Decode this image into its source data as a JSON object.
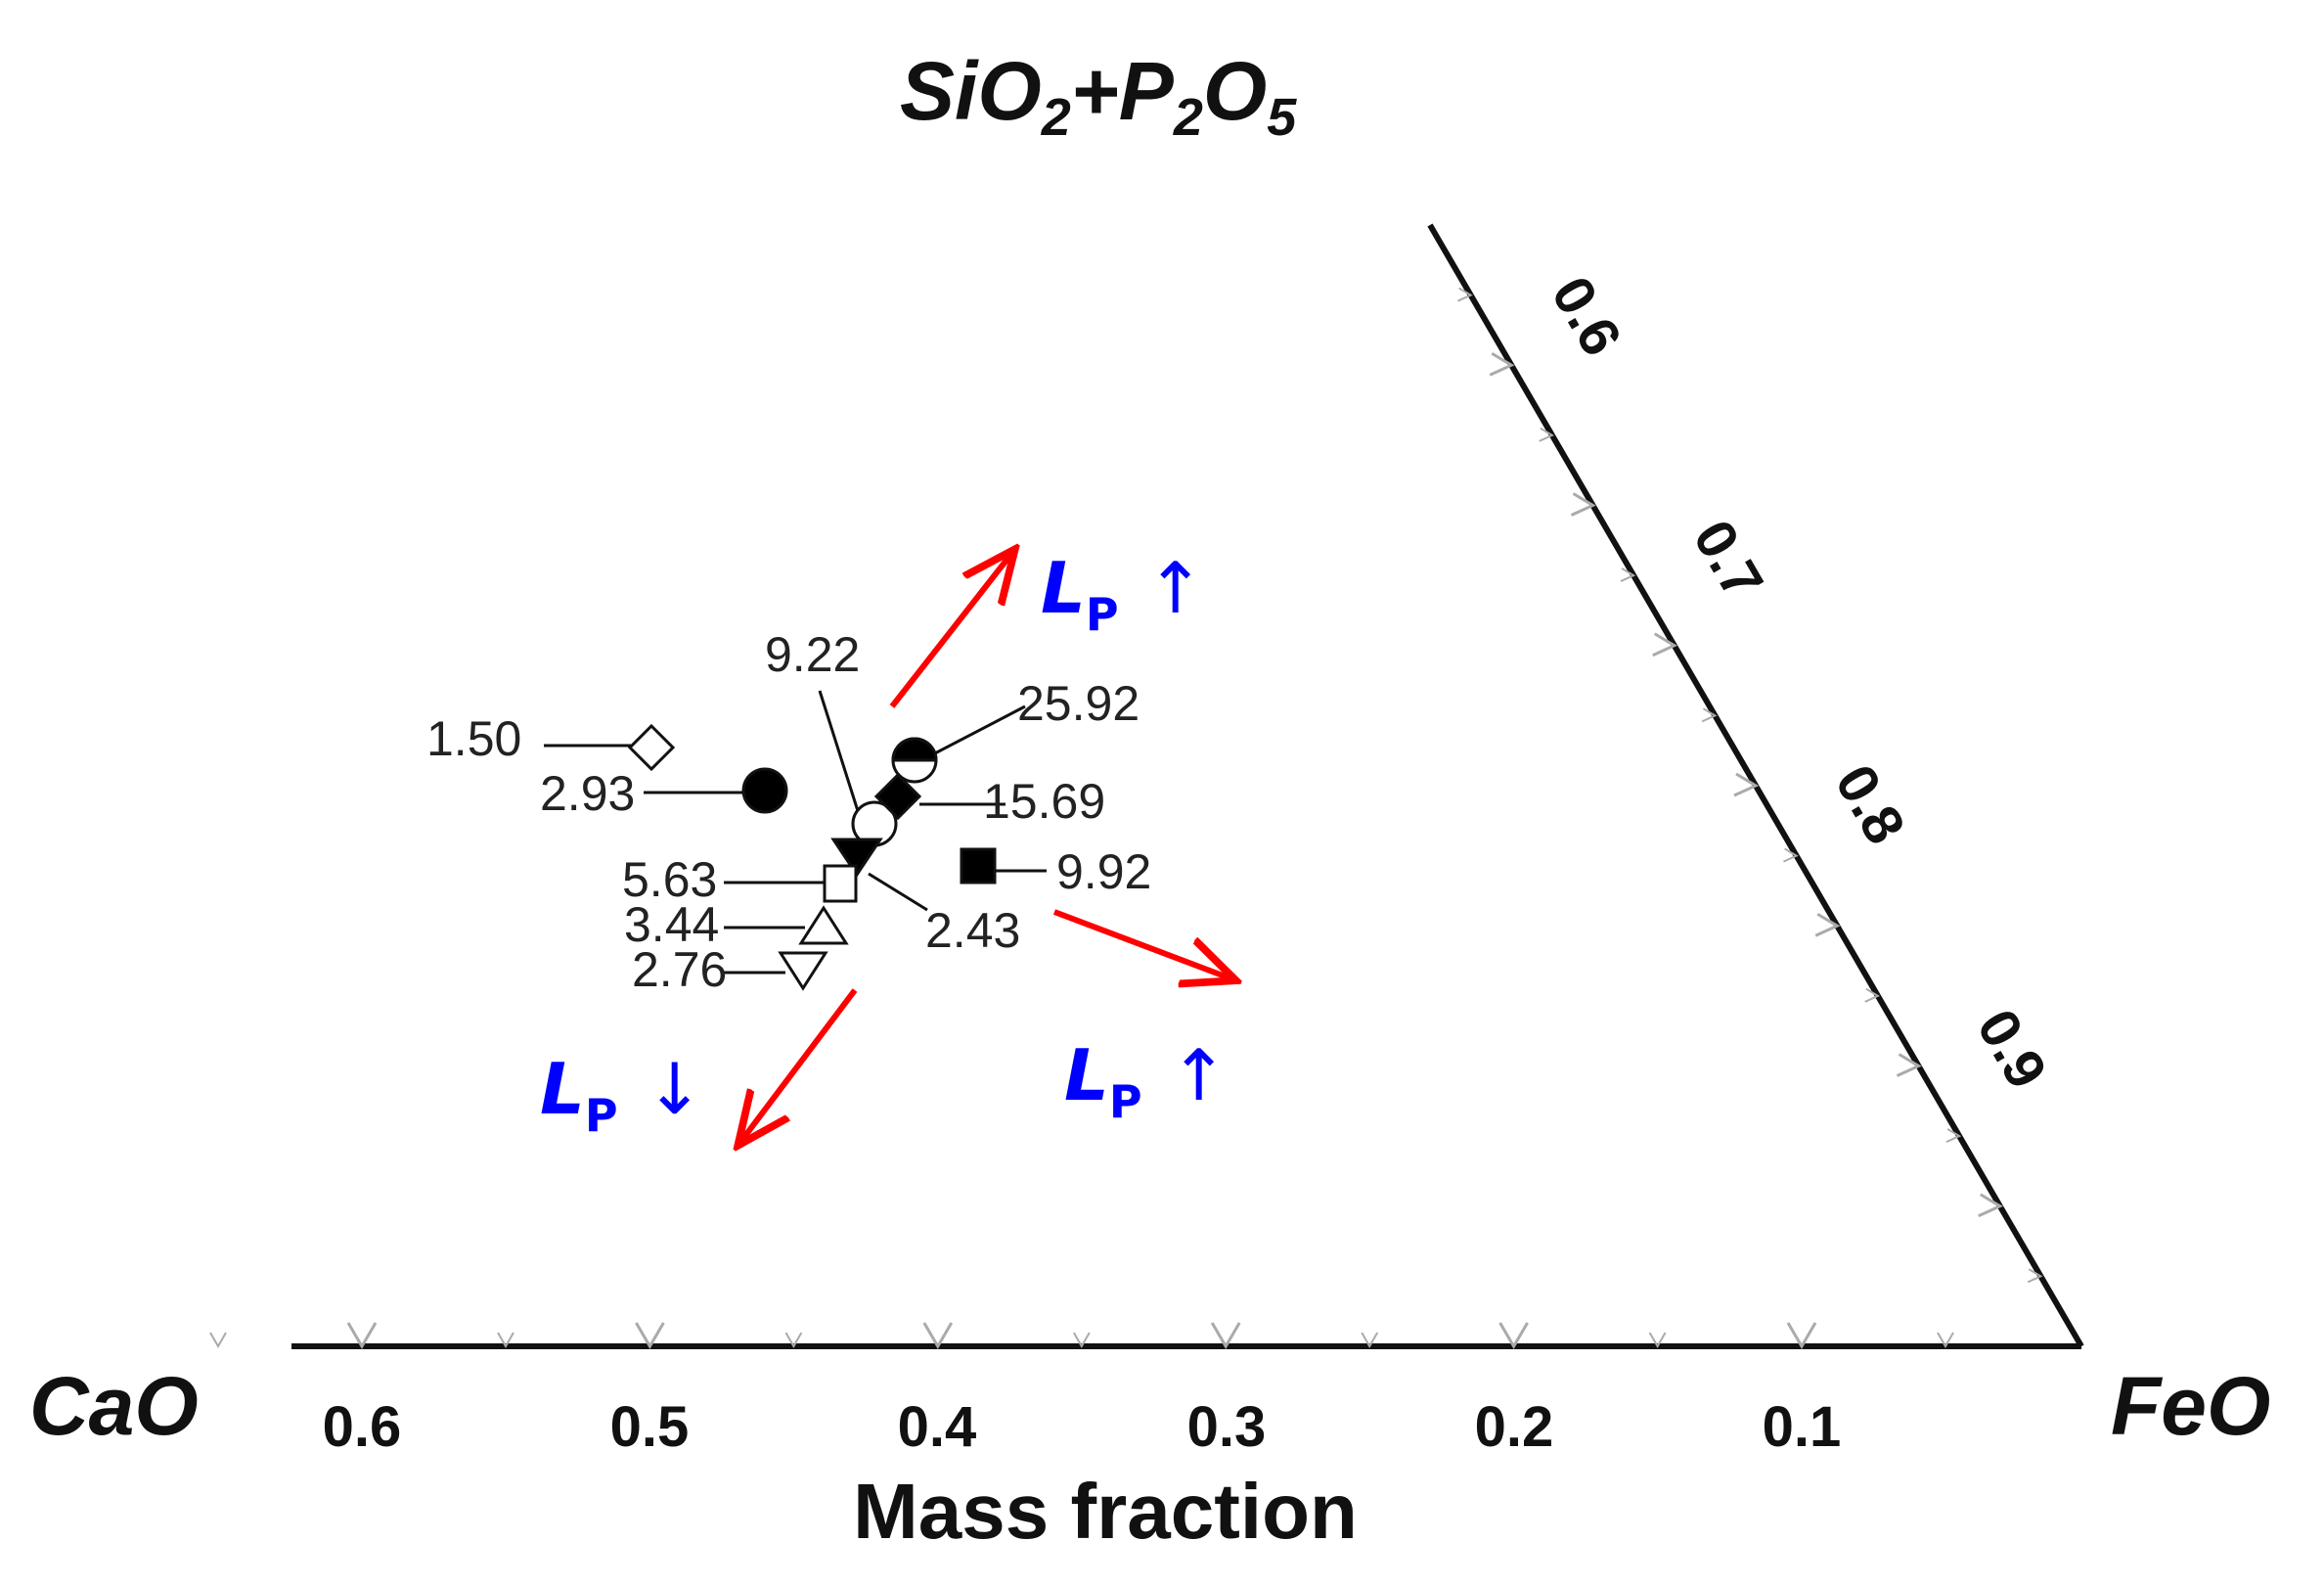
{
  "chart_data": {
    "type": "ternary-scatter",
    "corners": {
      "top": {
        "base": "SiO",
        "sub1": "2",
        "plus": "+P",
        "sub2": "2",
        "o": "O",
        "sub3": "5"
      },
      "left": "CaO",
      "right": "FeO"
    },
    "xlabel": "Mass fraction",
    "bottom_ticks": [
      "0.6",
      "0.5",
      "0.4",
      "0.3",
      "0.2",
      "0.1"
    ],
    "right_ticks": [
      "0.6",
      "0.7",
      "0.8",
      "0.9"
    ],
    "points": [
      {
        "label": "1.50",
        "marker": "diamond-open"
      },
      {
        "label": "2.93",
        "marker": "circle-filled"
      },
      {
        "label": "9.22",
        "marker": "circle-open"
      },
      {
        "label": "25.92",
        "marker": "circle-half"
      },
      {
        "label": "15.69",
        "marker": "diamond-filled"
      },
      {
        "label": "9.92",
        "marker": "square-filled"
      },
      {
        "label": "2.43",
        "marker": "triangle-down-filled"
      },
      {
        "label": "5.63",
        "marker": "square-open"
      },
      {
        "label": "3.44",
        "marker": "triangle-up-open"
      },
      {
        "label": "2.76",
        "marker": "triangle-down-open"
      }
    ],
    "annotations": [
      {
        "text": "L",
        "sub": "P",
        "arrow": "↑",
        "direction": "up-right"
      },
      {
        "text": "L",
        "sub": "P",
        "arrow": "↑",
        "direction": "right"
      },
      {
        "text": "L",
        "sub": "P",
        "arrow": "↓",
        "direction": "down-left"
      }
    ],
    "colors": {
      "axis": "#111111",
      "arrow": "#ff0000",
      "annotation": "#0000ff",
      "tickmark": "#aaaaaa"
    }
  }
}
